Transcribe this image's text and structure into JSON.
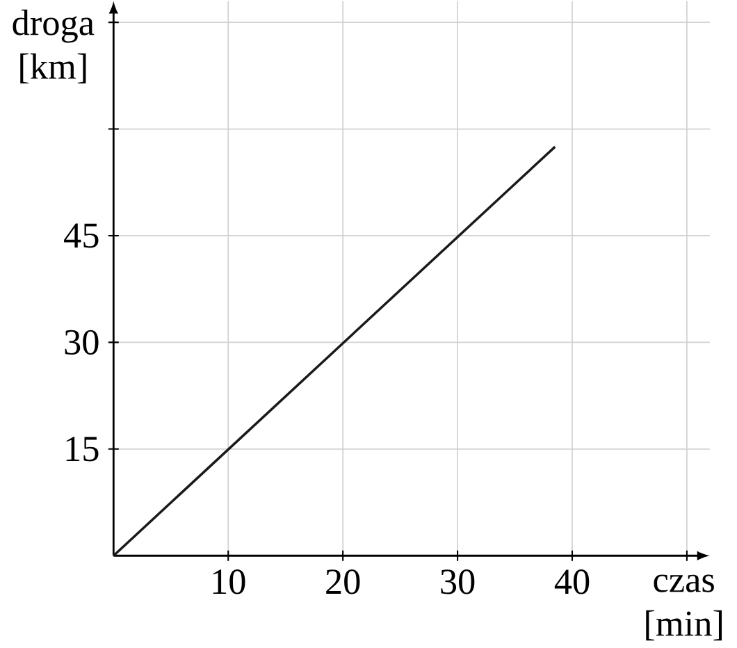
{
  "chart_data": {
    "type": "line",
    "xlabel": "czas [min]",
    "ylabel": "droga [km]",
    "x": [
      0,
      38.5
    ],
    "series": [
      {
        "color": "#1a1a1a",
        "values": [
          0,
          57.5
        ]
      }
    ],
    "xlim": [
      0,
      52
    ],
    "ylim": [
      0,
      78
    ],
    "xticks": [
      10,
      20,
      30,
      40,
      {
        "value": 50,
        "label": null
      }
    ],
    "yticks": [
      15,
      30,
      45,
      {
        "value": 60,
        "label": null
      },
      {
        "value": 75,
        "label": null
      }
    ],
    "grid": true,
    "marker": "none",
    "line_style": "solid"
  }
}
